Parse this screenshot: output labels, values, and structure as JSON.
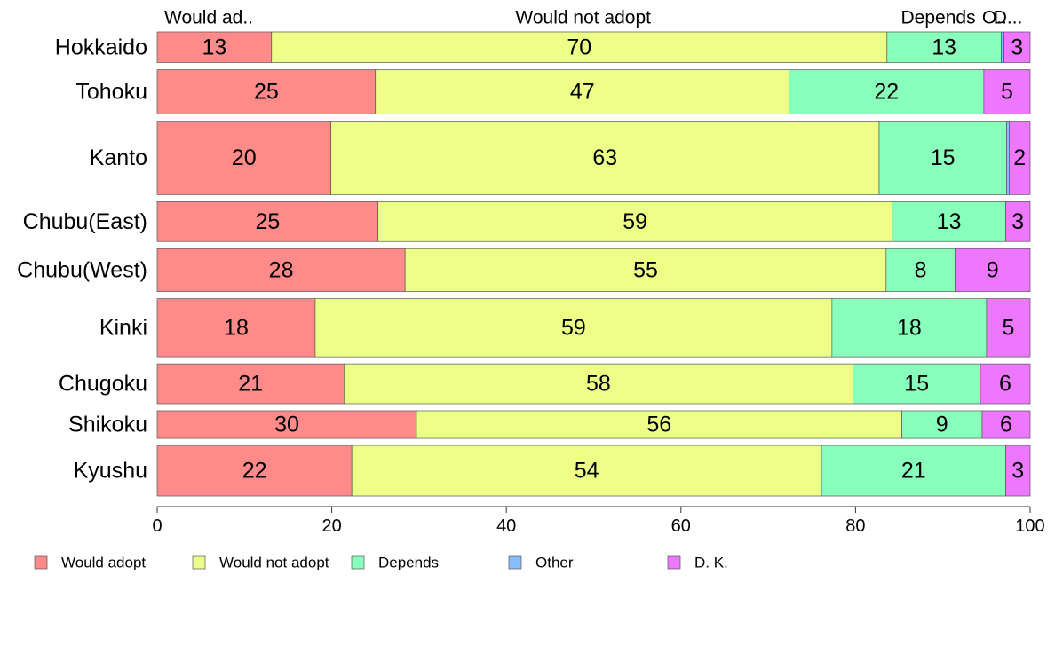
{
  "chart_data": {
    "type": "bar",
    "orientation": "horizontal",
    "stacked": true,
    "categories": [
      "Hokkaido",
      "Tohoku",
      "Kanto",
      "Chubu(East)",
      "Chubu(West)",
      "Kinki",
      "Chugoku",
      "Shikoku",
      "Kyushu"
    ],
    "series": [
      {
        "name": "Would adopt",
        "color": "#ff8a8a",
        "values": [
          13.1,
          25,
          19.9,
          25.3,
          28.4,
          18.1,
          21.4,
          29.7,
          22.3
        ]
      },
      {
        "name": "Would not adopt",
        "color": "#eeff88",
        "values": [
          70.5,
          47.4,
          62.8,
          58.9,
          55.1,
          59.2,
          58.3,
          55.6,
          53.8
        ]
      },
      {
        "name": "Depends",
        "color": "#88ffbb",
        "values": [
          13.1,
          22.3,
          14.6,
          13,
          7.9,
          17.7,
          14.6,
          9.2,
          21.1
        ]
      },
      {
        "name": "Other",
        "color": "#88bbff",
        "values": [
          0.3,
          0,
          0.3,
          0,
          0,
          0,
          0,
          0,
          0
        ]
      },
      {
        "name": "D. K.",
        "color": "#ee77ff",
        "values": [
          3,
          5.3,
          2.4,
          2.8,
          8.6,
          5,
          5.7,
          5.5,
          2.8
        ]
      }
    ],
    "data_labels": [
      [
        "13",
        "70",
        "13",
        "",
        "3"
      ],
      [
        "25",
        "47",
        "22",
        "",
        "5"
      ],
      [
        "20",
        "63",
        "15",
        "",
        "2"
      ],
      [
        "25",
        "59",
        "13",
        "",
        "3"
      ],
      [
        "28",
        "55",
        "8",
        "",
        "9"
      ],
      [
        "18",
        "59",
        "18",
        "",
        "5"
      ],
      [
        "21",
        "58",
        "15",
        "",
        "6"
      ],
      [
        "30",
        "56",
        "9",
        "",
        "6"
      ],
      [
        "22",
        "54",
        "21",
        "",
        "3"
      ]
    ],
    "row_weights": [
      1,
      1.45,
      2.4,
      1.3,
      1.4,
      1.9,
      1.3,
      0.9,
      1.65
    ],
    "top_labels": [
      "Would ad..",
      "Would not adopt",
      "Depends",
      "O..",
      "D..."
    ],
    "xlim": [
      0,
      100
    ],
    "xticks": [
      "0",
      "20",
      "40",
      "60",
      "80",
      "100"
    ],
    "legend_position": "bottom",
    "grid": false,
    "title": "",
    "xlabel": "",
    "ylabel": ""
  }
}
